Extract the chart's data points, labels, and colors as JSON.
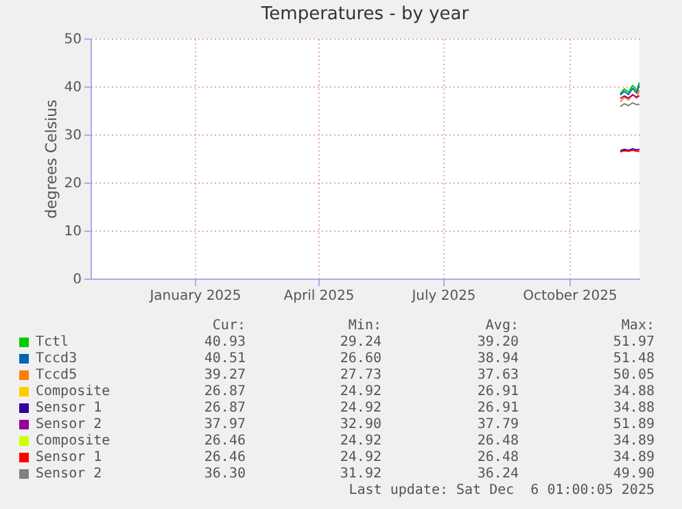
{
  "chart_data": {
    "type": "line",
    "title": "Temperatures - by year",
    "ylabel": "degrees Celsius",
    "x": [
      "2025-11-22",
      "2025-11-25",
      "2025-11-28",
      "2025-12-01",
      "2025-12-04",
      "2025-12-06"
    ],
    "xlim": [
      "2024-11-01",
      "2025-12-06"
    ],
    "xticks": [
      {
        "value": "2025-01-16",
        "label": "January 2025"
      },
      {
        "value": "2025-04-16",
        "label": "April 2025"
      },
      {
        "value": "2025-07-16",
        "label": "July 2025"
      },
      {
        "value": "2025-10-16",
        "label": "October 2025"
      }
    ],
    "ylim": [
      0,
      50
    ],
    "yticks": [
      0,
      10,
      20,
      30,
      40,
      50
    ],
    "grid": true,
    "legend": "bottom",
    "series": [
      {
        "name": "Tctl",
        "color": "#00cc00",
        "values": [
          38.5,
          39.5,
          38.8,
          40.2,
          39.1,
          40.9
        ]
      },
      {
        "name": "Tccd3",
        "color": "#0066b3",
        "values": [
          38.2,
          39.0,
          38.3,
          39.6,
          38.6,
          40.5
        ]
      },
      {
        "name": "Tccd5",
        "color": "#ff8000",
        "values": [
          36.8,
          37.8,
          37.2,
          38.4,
          37.5,
          39.3
        ]
      },
      {
        "name": "Composite",
        "color": "#ffcc00",
        "values": [
          null,
          null,
          null,
          null,
          null,
          null
        ]
      },
      {
        "name": "Sensor 1",
        "color": "#330099",
        "values": [
          26.6,
          26.9,
          26.7,
          27.0,
          26.8,
          26.9
        ]
      },
      {
        "name": "Sensor 2",
        "color": "#990099",
        "values": [
          37.5,
          38.0,
          37.6,
          38.2,
          37.8,
          38.0
        ]
      },
      {
        "name": "Composite",
        "color": "#ccff00",
        "values": [
          null,
          null,
          null,
          null,
          null,
          null
        ]
      },
      {
        "name": "Sensor 1",
        "color": "#ff0000",
        "values": [
          26.4,
          26.6,
          26.5,
          26.7,
          26.5,
          26.5
        ]
      },
      {
        "name": "Sensor 2",
        "color": "#808080",
        "values": [
          35.8,
          36.4,
          36.0,
          36.6,
          36.2,
          36.3
        ]
      }
    ],
    "annotations": [
      "Cur:",
      "Min:",
      "Avg:",
      "Max:",
      "40.93",
      "29.24",
      "39.20",
      "51.97",
      "40.51",
      "26.60",
      "38.94",
      "51.48",
      "39.27",
      "27.73",
      "37.63",
      "50.05",
      "26.87",
      "24.92",
      "26.91",
      "34.88",
      "26.87",
      "24.92",
      "26.91",
      "34.88",
      "37.97",
      "32.90",
      "37.79",
      "51.89",
      "26.46",
      "24.92",
      "26.48",
      "34.89",
      "26.46",
      "24.92",
      "26.48",
      "34.89",
      "36.30",
      "31.92",
      "36.24",
      "49.90",
      "Last update: Sat Dec  6 01:00:05 2025"
    ]
  }
}
